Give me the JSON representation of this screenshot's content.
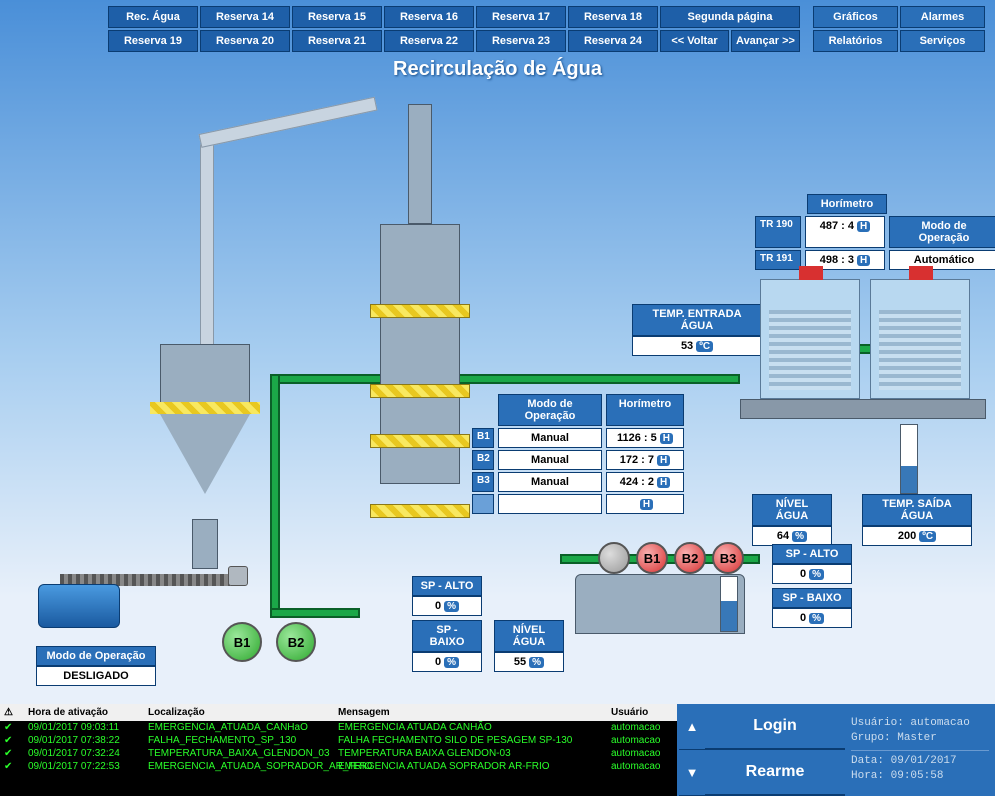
{
  "nav": {
    "row1": [
      "Rec. Água",
      "Reserva 14",
      "Reserva 15",
      "Reserva 16",
      "Reserva 17",
      "Reserva 18"
    ],
    "row2": [
      "Reserva 19",
      "Reserva 20",
      "Reserva 21",
      "Reserva 22",
      "Reserva 23",
      "Reserva 24"
    ],
    "page2": "Segunda página",
    "back": "<< Voltar",
    "fwd": "Avançar >>",
    "right_row1": [
      "Gráficos",
      "Alarmes"
    ],
    "right_row2": [
      "Relatórios",
      "Serviços"
    ]
  },
  "title": "Recirculação de Água",
  "horimetro_label": "Horímetro",
  "modo_label": "Modo de Operação",
  "top_mode_value": "Automático",
  "tr190": {
    "tag": "TR 190",
    "val": "487 : 4"
  },
  "tr191": {
    "tag": "TR 191",
    "val": "498 : 3"
  },
  "temp_in": {
    "label": "TEMP. ENTRADA ÁGUA",
    "val": "53",
    "unit": "ºC"
  },
  "temp_out": {
    "label": "TEMP. SAÍDA ÁGUA",
    "val": "200",
    "unit": "ºC"
  },
  "nivel_agua1": {
    "label": "NÍVEL ÁGUA",
    "val": "64",
    "unit": "%",
    "pct": 64
  },
  "nivel_agua2": {
    "label": "NÍVEL ÁGUA",
    "val": "55",
    "unit": "%",
    "pct": 55
  },
  "pumps_set1": {
    "b1": {
      "mode": "Manual",
      "hour": "1126 : 5"
    },
    "b2": {
      "mode": "Manual",
      "hour": "172 : 7"
    },
    "b3": {
      "mode": "Manual",
      "hour": "424 : 2"
    },
    "color": "#d83030"
  },
  "sp_alto_label": "SP - ALTO",
  "sp_baixo_label": "SP - BAIXO",
  "sp_set1": {
    "alto": "0",
    "baixo": "0"
  },
  "sp_set2": {
    "alto": "0",
    "baixo": "0"
  },
  "left_mode": {
    "label": "Modo de Operação",
    "val": "DESLIGADO"
  },
  "pumps_left": {
    "b1": "B1",
    "b2": "B2",
    "color": "#2ea82e"
  },
  "pumps_mid": {
    "b1": "B1",
    "b2": "B2",
    "b3": "B3"
  },
  "tank_mid_level": 55,
  "tank_right_level": 40,
  "towers": {
    "fan_color": "#d83030"
  },
  "alarms": {
    "headers": {
      "time": "Hora de ativação",
      "loc": "Localização",
      "msg": "Mensagem",
      "user": "Usuário"
    },
    "rows": [
      {
        "time": "09/01/2017 09:03:11",
        "loc": "EMERGENCIA_ATUADA_CANHaO",
        "msg": "EMERGENCIA ATUADA CANHÃO",
        "user": "automacao"
      },
      {
        "time": "09/01/2017 07:38:22",
        "loc": "FALHA_FECHAMENTO_SP_130",
        "msg": "FALHA FECHAMENTO SILO DE PESAGEM SP-130",
        "user": "automacao"
      },
      {
        "time": "09/01/2017 07:32:24",
        "loc": "TEMPERATURA_BAIXA_GLENDON_03",
        "msg": "TEMPERATURA BAIXA GLENDON-03",
        "user": "automacao"
      },
      {
        "time": "09/01/2017 07:22:53",
        "loc": "EMERGENCIA_ATUADA_SOPRADOR_AR_FRIO",
        "msg": "EMERGENCIA ATUADA SOPRADOR AR-FRIO",
        "user": "automacao"
      }
    ]
  },
  "bottom_btns": {
    "login": "Login",
    "rearme": "Rearme"
  },
  "session": {
    "user_lbl": "Usuário:",
    "user": "automacao",
    "group_lbl": "Grupo:",
    "group": "Master",
    "date_lbl": "Data:",
    "date": "09/01/2017",
    "time_lbl": "Hora:",
    "time": "09:05:58"
  }
}
